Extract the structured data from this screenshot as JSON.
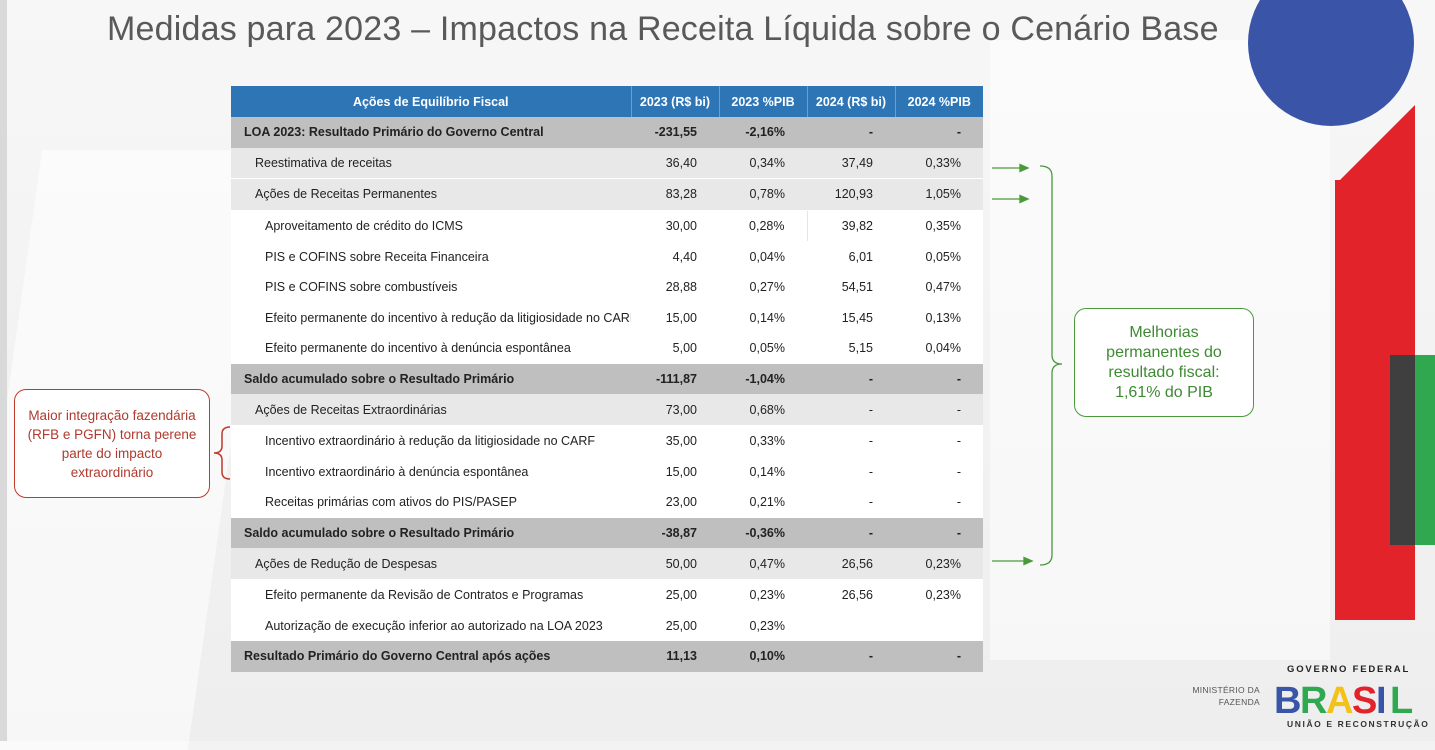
{
  "title": "Medidas para 2023 – Impactos na Receita Líquida sobre o Cenário Base",
  "table": {
    "headers": [
      "Ações de Equilíbrio Fiscal",
      "2023 (R$ bi)",
      "2023 %PIB",
      "2024 (R$ bi)",
      "2024 %PIB"
    ],
    "rows": [
      {
        "type": "total",
        "label": "LOA 2023: Resultado Primário do Governo Central",
        "v2023": "-231,55",
        "p2023": "-2,16%",
        "v2024": "-",
        "p2024": "-"
      },
      {
        "type": "group",
        "label": "Reestimativa de receitas",
        "v2023": "36,40",
        "p2023": "0,34%",
        "v2024": "37,49",
        "p2024": "0,33%"
      },
      {
        "type": "group",
        "label": "Ações de Receitas Permanentes",
        "v2023": "83,28",
        "p2023": "0,78%",
        "v2024": "120,93",
        "p2024": "1,05%"
      },
      {
        "type": "item",
        "label": "Aproveitamento de crédito do ICMS",
        "v2023": "30,00",
        "p2023": "0,28%",
        "v2024": "39,82",
        "p2024": "0,35%"
      },
      {
        "type": "item",
        "label": "PIS e COFINS sobre Receita Financeira",
        "v2023": "4,40",
        "p2023": "0,04%",
        "v2024": "6,01",
        "p2024": "0,05%"
      },
      {
        "type": "item",
        "label": "PIS e COFINS sobre combustíveis",
        "v2023": "28,88",
        "p2023": "0,27%",
        "v2024": "54,51",
        "p2024": "0,47%"
      },
      {
        "type": "item",
        "label": "Efeito permanente do incentivo à redução da litigiosidade no CARF",
        "v2023": "15,00",
        "p2023": "0,14%",
        "v2024": "15,45",
        "p2024": "0,13%"
      },
      {
        "type": "item",
        "label": "Efeito permanente do incentivo à denúncia espontânea",
        "v2023": "5,00",
        "p2023": "0,05%",
        "v2024": "5,15",
        "p2024": "0,04%"
      },
      {
        "type": "total",
        "label": "Saldo acumulado sobre o Resultado Primário",
        "v2023": "-111,87",
        "p2023": "-1,04%",
        "v2024": "-",
        "p2024": "-"
      },
      {
        "type": "group",
        "label": "Ações de Receitas Extraordinárias",
        "v2023": "73,00",
        "p2023": "0,68%",
        "v2024": "-",
        "p2024": "-"
      },
      {
        "type": "item",
        "label": "Incentivo extraordinário à redução da litigiosidade no CARF",
        "v2023": "35,00",
        "p2023": "0,33%",
        "v2024": "-",
        "p2024": "-"
      },
      {
        "type": "item",
        "label": "Incentivo extraordinário à denúncia espontânea",
        "v2023": "15,00",
        "p2023": "0,14%",
        "v2024": "-",
        "p2024": "-"
      },
      {
        "type": "item",
        "label": "Receitas primárias com ativos do PIS/PASEP",
        "v2023": "23,00",
        "p2023": "0,21%",
        "v2024": "-",
        "p2024": "-"
      },
      {
        "type": "total",
        "label": "Saldo acumulado sobre o Resultado Primário",
        "v2023": "-38,87",
        "p2023": "-0,36%",
        "v2024": "-",
        "p2024": "-"
      },
      {
        "type": "group",
        "label": "Ações de Redução de Despesas",
        "v2023": "50,00",
        "p2023": "0,47%",
        "v2024": "26,56",
        "p2024": "0,23%"
      },
      {
        "type": "item",
        "label": "Efeito permanente da Revisão de Contratos e Programas",
        "v2023": "25,00",
        "p2023": "0,23%",
        "v2024": "26,56",
        "p2024": "0,23%"
      },
      {
        "type": "item",
        "label": "Autorização de execução inferior ao autorizado na LOA 2023",
        "v2023": "25,00",
        "p2023": "0,23%",
        "v2024": "",
        "p2024": ""
      },
      {
        "type": "total",
        "label": "Resultado Primário do Governo Central após ações",
        "v2023": "11,13",
        "p2023": "0,10%",
        "v2024": "-",
        "p2024": "-"
      }
    ]
  },
  "callouts": {
    "left": "Maior integração fazendária (RFB e PGFN) torna perene parte do impacto extraordinário",
    "right": "Melhorias permanentes do resultado fiscal: 1,61% do PIB"
  },
  "footer": {
    "ministry_line1": "MINISTÉRIO DA",
    "ministry_line2": "FAZENDA",
    "gov_top": "GOVERNO FEDERAL",
    "gov_logo_word": "BRASIL",
    "gov_bottom": "UNIÃO E RECONSTRUÇÃO"
  },
  "colors": {
    "header_blue": "#2e75b6",
    "total_gray": "#bfbfbf",
    "group_gray": "#e8e8e8",
    "callout_red": "#c0392b",
    "callout_green": "#4a9a3c",
    "brand_blue": "#3a55a8",
    "brand_red": "#e2232a",
    "brand_green": "#2fa84f"
  }
}
